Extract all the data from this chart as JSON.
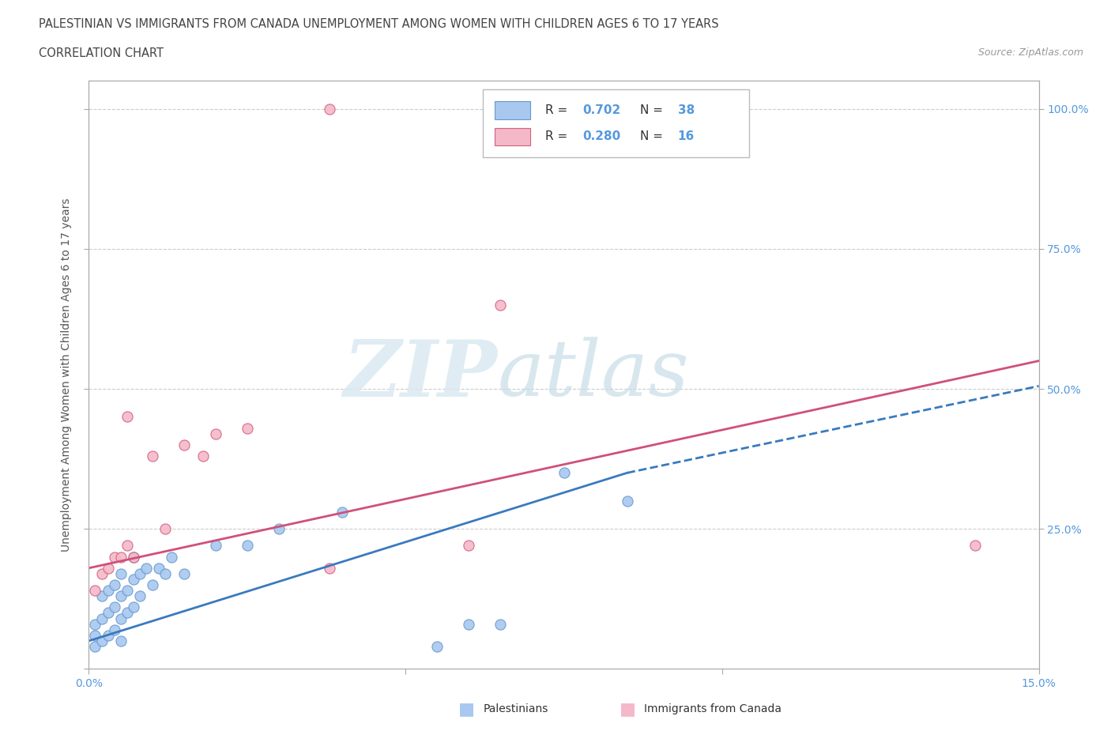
{
  "title_line1": "PALESTINIAN VS IMMIGRANTS FROM CANADA UNEMPLOYMENT AMONG WOMEN WITH CHILDREN AGES 6 TO 17 YEARS",
  "title_line2": "CORRELATION CHART",
  "source": "Source: ZipAtlas.com",
  "ylabel": "Unemployment Among Women with Children Ages 6 to 17 years",
  "xlim": [
    0.0,
    0.15
  ],
  "ylim": [
    0.0,
    1.05
  ],
  "palestinians_x": [
    0.001,
    0.001,
    0.001,
    0.002,
    0.002,
    0.002,
    0.003,
    0.003,
    0.003,
    0.004,
    0.004,
    0.004,
    0.005,
    0.005,
    0.005,
    0.005,
    0.006,
    0.006,
    0.007,
    0.007,
    0.007,
    0.008,
    0.008,
    0.009,
    0.01,
    0.011,
    0.012,
    0.013,
    0.015,
    0.02,
    0.025,
    0.03,
    0.04,
    0.055,
    0.06,
    0.065,
    0.075,
    0.085
  ],
  "palestinians_y": [
    0.04,
    0.06,
    0.08,
    0.05,
    0.09,
    0.13,
    0.06,
    0.1,
    0.14,
    0.07,
    0.11,
    0.15,
    0.05,
    0.09,
    0.13,
    0.17,
    0.1,
    0.14,
    0.11,
    0.16,
    0.2,
    0.13,
    0.17,
    0.18,
    0.15,
    0.18,
    0.17,
    0.2,
    0.17,
    0.22,
    0.22,
    0.25,
    0.28,
    0.04,
    0.08,
    0.08,
    0.35,
    0.3
  ],
  "canada_x": [
    0.001,
    0.002,
    0.003,
    0.004,
    0.005,
    0.006,
    0.007,
    0.01,
    0.012,
    0.015,
    0.018,
    0.02,
    0.025,
    0.038,
    0.06,
    0.14
  ],
  "canada_y": [
    0.14,
    0.17,
    0.18,
    0.2,
    0.2,
    0.22,
    0.2,
    0.38,
    0.25,
    0.4,
    0.38,
    0.42,
    0.43,
    0.18,
    0.22,
    0.22
  ],
  "blue_scatter_color": "#a8c8f0",
  "blue_scatter_edge": "#6699cc",
  "pink_scatter_color": "#f5b8c8",
  "pink_scatter_edge": "#d06080",
  "blue_line_color": "#3a7abf",
  "pink_line_color": "#d0507a",
  "r_blue": "0.702",
  "n_blue": "38",
  "r_pink": "0.280",
  "n_pink": "16",
  "watermark_zip": "ZIP",
  "watermark_atlas": "atlas",
  "background_color": "#ffffff",
  "grid_color": "#cccccc",
  "tick_color": "#5599dd",
  "axis_color": "#aaaaaa"
}
